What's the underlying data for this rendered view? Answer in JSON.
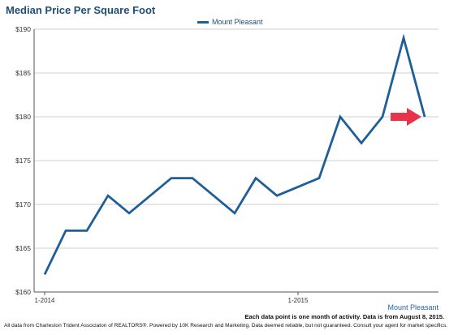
{
  "chart_data": {
    "type": "line",
    "title": "Median Price Per Square Foot",
    "xlabel": "",
    "ylabel": "",
    "x_ticks": [
      "1-2014",
      "1-2015"
    ],
    "y_ticks": [
      "$160",
      "$165",
      "$170",
      "$175",
      "$180",
      "$185",
      "$190"
    ],
    "ylim": [
      160,
      190
    ],
    "grid": true,
    "legend": "top-center",
    "series": [
      {
        "name": "Mount Pleasant",
        "color": "#1f5f99",
        "values": [
          162,
          167,
          167,
          171,
          169,
          171,
          173,
          173,
          171,
          169,
          173,
          171,
          172,
          173,
          180,
          177,
          180,
          189,
          180
        ]
      }
    ],
    "annotation": {
      "type": "arrow",
      "color": "#e8334a",
      "points_to_index": 18
    }
  },
  "area_label": "Mount Pleasant",
  "note": "Each data point is one month of activity. Data is from August 8, 2015.",
  "footer": "All data from Charleston Trident Associaton of REALTORS®. Powered by 10K Research and Marketing. Data deemed reliable, but not guaranteed. Consult your agent for market specifics."
}
